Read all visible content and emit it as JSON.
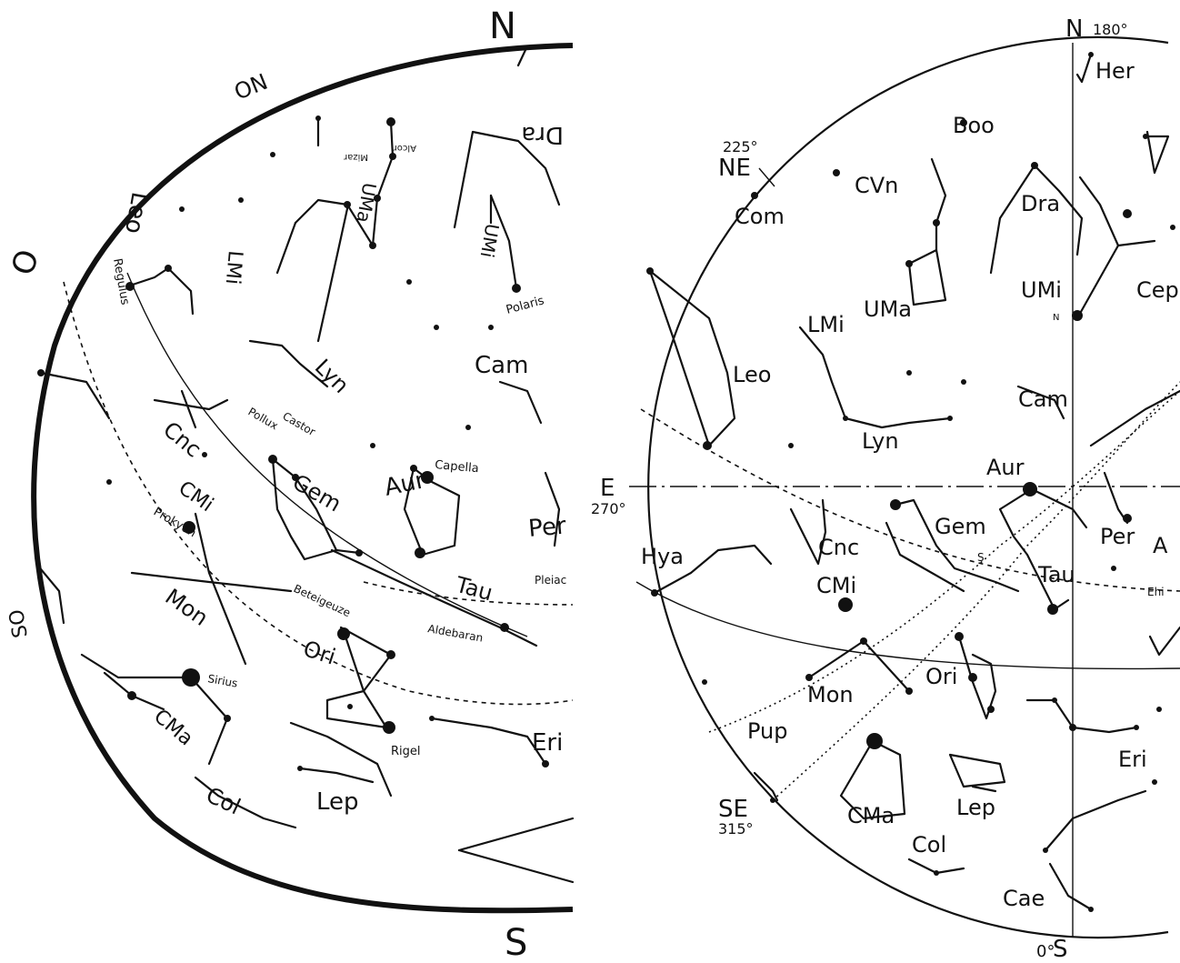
{
  "left_map": {
    "cardinals": {
      "north": "N",
      "northwest": "ON",
      "west": "O",
      "southwest": "SO",
      "south": "S"
    },
    "constellations": {
      "leo": "Leo",
      "lmi": "LMi",
      "uma": "UMa",
      "umi": "UMi",
      "dra": "Dra",
      "lyn": "Lyn",
      "cam": "Cam",
      "cnc": "Cnc",
      "gem": "Gem",
      "aur": "Aur",
      "cmi": "CMi",
      "mon": "Mon",
      "tau": "Tau",
      "per": "Per",
      "ori": "Ori",
      "cma": "CMa",
      "eri": "Eri",
      "lep": "Lep",
      "col": "Col"
    },
    "stars": {
      "regulus": "Regulus",
      "polaris": "Polaris",
      "pollux": "Pollux",
      "castor": "Castor",
      "capella": "Capella",
      "procyon": "Prokyon",
      "betelgeuze": "Beteigeuze",
      "aldebaran": "Aldebaran",
      "pleiades": "Pleiac",
      "sirius": "Sirius",
      "rigel": "Rigel",
      "mizar": "Mizar",
      "alcor": "Alcor"
    }
  },
  "right_map": {
    "cardinals": {
      "north": "N",
      "north_deg": "180°",
      "northeast": "NE",
      "northeast_deg": "225°",
      "east": "E",
      "east_deg": "270°",
      "southeast": "SE",
      "southeast_deg": "315°",
      "south": "S",
      "south_deg": "0°"
    },
    "constellations": {
      "her": "Her",
      "boo": "Boo",
      "cvn": "CVn",
      "com": "Com",
      "dra": "Dra",
      "umi": "UMi",
      "cep": "Cep",
      "uma": "UMa",
      "lmi": "LMi",
      "leo": "Leo",
      "cam": "Cam",
      "lyn": "Lyn",
      "aur": "Aur",
      "hya": "Hya",
      "cnc": "Cnc",
      "gem": "Gem",
      "per": "Per",
      "a_cut": "A",
      "cmi": "CMi",
      "tau": "Tau",
      "ehi": "Ehi",
      "ori": "Ori",
      "mon": "Mon",
      "pup": "Pup",
      "eri": "Eri",
      "cma": "CMa",
      "lep": "Lep",
      "col": "Col",
      "cae": "Cae"
    },
    "markers": {
      "pole": "N",
      "sun": "S"
    }
  }
}
